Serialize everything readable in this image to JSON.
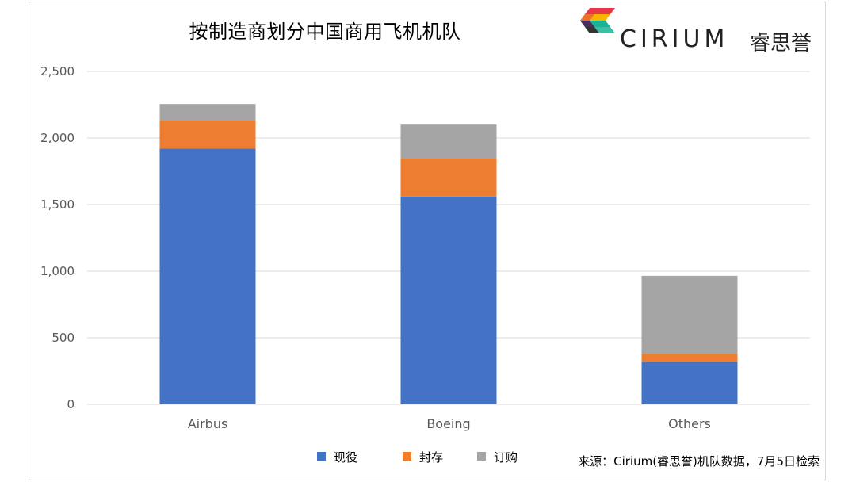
{
  "chart_data": {
    "type": "bar",
    "stacked": true,
    "title": "按制造商划分中国商用飞机机队",
    "categories": [
      "Airbus",
      "Boeing",
      "Others"
    ],
    "series": [
      {
        "name": "现役",
        "color": "#4472C4",
        "values": [
          1920,
          1560,
          320
        ]
      },
      {
        "name": "封存",
        "color": "#ED7D31",
        "values": [
          215,
          290,
          60
        ]
      },
      {
        "name": "订购",
        "color": "#A5A5A5",
        "values": [
          120,
          250,
          585
        ]
      }
    ],
    "ylim": [
      0,
      2500
    ],
    "yticks": [
      0,
      500,
      1000,
      1500,
      2000,
      2500
    ],
    "ytick_labels": [
      "0",
      "500",
      "1,000",
      "1,500",
      "2,000",
      "2,500"
    ],
    "grid": true,
    "legend_position": "bottom"
  },
  "logo": {
    "name": "CIRIUM",
    "chinese": "睿思誉",
    "colors": [
      "#E8354A",
      "#F7B500",
      "#1AB394",
      "#4B2C5E"
    ]
  },
  "source": "来源：Cirium(睿思誉)机队数据，7月5日检索"
}
